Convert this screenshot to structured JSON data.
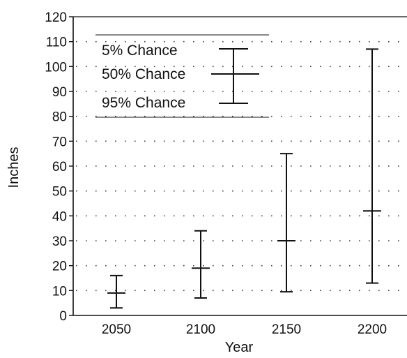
{
  "chart_data": {
    "type": "errorbar",
    "xlabel": "Year",
    "ylabel": "Inches",
    "categories": [
      "2050",
      "2100",
      "2150",
      "2200"
    ],
    "ylim": [
      0,
      120
    ],
    "yticks": [
      "0",
      "10",
      "20",
      "30",
      "40",
      "50",
      "60",
      "70",
      "80",
      "90",
      "100",
      "110",
      "120"
    ],
    "series": [
      {
        "name": "5% Chance",
        "values": [
          16,
          34,
          65,
          107
        ]
      },
      {
        "name": "50% Chance",
        "values": [
          9,
          19,
          30,
          42
        ]
      },
      {
        "name": "95% Chance",
        "values": [
          3,
          7,
          9.5,
          13
        ]
      }
    ],
    "legend": {
      "entries": [
        "5% Chance",
        "50% Chance",
        "95% Chance"
      ],
      "placement": "top-left"
    },
    "grid": "dotted"
  }
}
